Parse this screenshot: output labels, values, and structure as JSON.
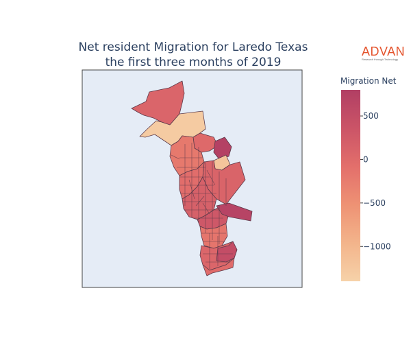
{
  "title_lines": [
    "Net resident Migration for Laredo Texas",
    "the first three months of 2019"
  ],
  "logo": {
    "name": "ADVAN",
    "tagline": "Research through Technology",
    "color": "#e4532c"
  },
  "map": {
    "background": "#e5ecf6",
    "border_color": "#444444",
    "region_stroke": "#5b3a4a"
  },
  "colorbar": {
    "title": "Migration Net",
    "min": -1400,
    "max": 800,
    "ticks": [
      500,
      0,
      -500,
      -1000
    ],
    "tick_labels": [
      "500",
      "0",
      "−500",
      "−1000"
    ],
    "colors": [
      "#f6d2a9",
      "#f3b48b",
      "#ee9274",
      "#e36f6b",
      "#cb5467",
      "#b13f64"
    ]
  },
  "regions": [
    {
      "id": "northwest-tract",
      "value": 80
    },
    {
      "id": "north-river-tract",
      "value": -1300
    },
    {
      "id": "northeast-tract",
      "value": 20
    },
    {
      "id": "north-central-tract",
      "value": -200
    },
    {
      "id": "upper-east-tract",
      "value": 750
    },
    {
      "id": "east-tract-light",
      "value": -1200
    },
    {
      "id": "east-mid-tract",
      "value": 100
    },
    {
      "id": "central-west-tract",
      "value": -50
    },
    {
      "id": "central-tract",
      "value": 150
    },
    {
      "id": "downtown-tract",
      "value": 300
    },
    {
      "id": "east-extension-tract",
      "value": 700
    },
    {
      "id": "south-central-tract",
      "value": -150
    },
    {
      "id": "south-tract",
      "value": 60
    },
    {
      "id": "south-east-tract",
      "value": 500
    },
    {
      "id": "far-south-tract",
      "value": -20
    }
  ]
}
